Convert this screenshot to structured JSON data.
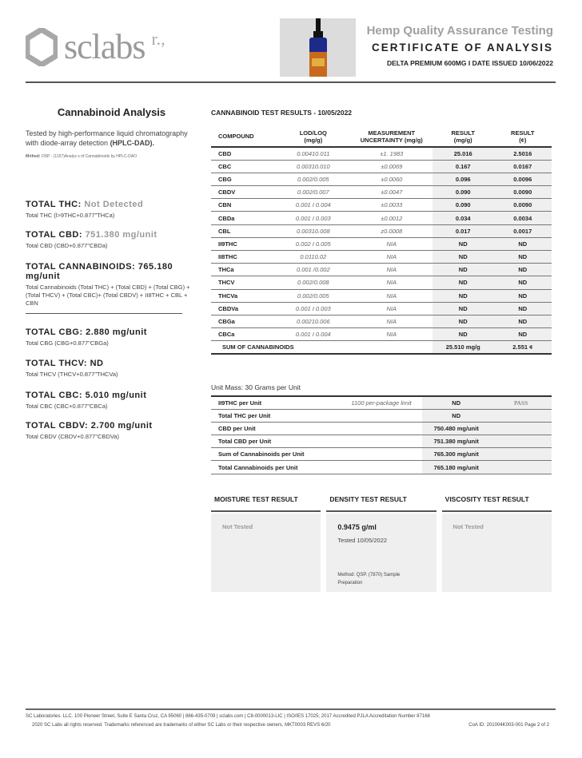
{
  "header": {
    "logo_text": "sclabs",
    "logo_sup": "r.,",
    "title1": "Hemp Quality Assurance Testing",
    "title2": "CERTIFICATE OF ANALYSIS",
    "subtitle": "DELTA PREMIUM 600MG  I DATE ISSUED 10/06/2022"
  },
  "left": {
    "title": "Cannabinoid Analysis",
    "desc_1": "Tested by high-performance liquid chromatography with diode-array detection ",
    "desc_2": "(HPLC-DAD).",
    "method_label": "M•thod:",
    "method": "OSP - (1157)Analys s of Cannablnoids by HPLC-DAO",
    "totals": [
      {
        "label": "TOTAL THC:",
        "value": "Not Detected",
        "formula": "Total THC (l>9THC+0.877\"THCa)"
      },
      {
        "label": "TOTAL CBD:",
        "value": "751.380 mg/unit",
        "formula": "Total CBD (CBD+0.877\"CBDa)"
      },
      {
        "label": "TOTAL CANNABINOIDS:",
        "value": "765.180 mg/unit",
        "formula": "Total Cannabinoids (Total THC) + (Total CBD) + (Total CBG) + (Total THCV) + (Total CBC)+ (Total CBDV) + II8THC + CBL + CBN"
      },
      {
        "label": "TOTAL CBG:",
        "value": "2.880 mg/unit",
        "formula": "Total CBG (CBG+0.877\"CBGa)"
      },
      {
        "label": "TOTAL THCV:",
        "value": "ND",
        "formula": "Total THCV (THCV+0.877\"THCVa)"
      },
      {
        "label": "TOTAL CBC:",
        "value": "5.010 mg/unit",
        "formula": "Total CBC (CBC+0.877\"CBCa)"
      },
      {
        "label": "TOTAL CBDV:",
        "value": "2.700 mg/unit",
        "formula": "Total CBDV (CBDV+0.877\"CBDVa)"
      }
    ]
  },
  "results": {
    "title": "CANNABINOID TEST RESULTS - 10/05/2022",
    "headers": [
      "COMPOUND",
      "LOD/LOQ\n(mg/g)",
      "MEASUREMENT\nUNCERTAINTY (mg/g)",
      "RESULT\n(mg/g)",
      "RESULT\n(¢)"
    ],
    "rows": [
      [
        "CBD",
        "0.00410.011",
        "±1. 1983",
        "25.016",
        "2.5016"
      ],
      [
        "CBC",
        "0.00310.010",
        "±0.0069",
        "0.167",
        "0.0167"
      ],
      [
        "CBG",
        "0.002/0.005",
        "±0.0060",
        "0.096",
        "0.0096"
      ],
      [
        "CBDV",
        "0.002/0.007",
        "±0.0047",
        "0.090",
        "0.0090"
      ],
      [
        "CBN",
        "0.001 I 0.004",
        "±0.0033",
        "0.090",
        "0.0090"
      ],
      [
        "CBDa",
        "0.001 I 0.003",
        "±0.0012",
        "0.034",
        "0.0034"
      ],
      [
        "CBL",
        "0.00310.008",
        "z0.0008",
        "0.017",
        "0.0017"
      ],
      [
        "II9THC",
        "0.002 I 0.005",
        "NIA",
        "ND",
        "ND"
      ],
      [
        "II8THC",
        "0.0110.02",
        "NIA",
        "ND",
        "ND"
      ],
      [
        "THCa",
        "0.001 /0.002",
        "NIA",
        "ND",
        "ND"
      ],
      [
        "THCV",
        "0.002/0.008",
        "NIA",
        "ND",
        "ND"
      ],
      [
        "THCVa",
        "0.002/0.005",
        "NIA",
        "ND",
        "ND"
      ],
      [
        "CBDVa",
        "0.001 I 0.003",
        "NIA",
        "ND",
        "ND"
      ],
      [
        "CBGa",
        "0.00210.006",
        "NIA",
        "ND",
        "ND"
      ],
      [
        "CBCa",
        "0.001 I 0.004",
        "NIA",
        "ND",
        "ND"
      ]
    ],
    "sum": [
      "SUM OF CANNABINOIDS",
      "25.510 mg/g",
      "2.551 ¢"
    ]
  },
  "unit": {
    "mass": "Unit Mass: 30 Grams per Unit",
    "rows": [
      [
        "II9THC per Unit",
        "1100 per-package limit",
        "ND",
        "PASS"
      ],
      [
        "Total THC per Unit",
        "",
        "ND",
        ""
      ],
      [
        "CBD per Unit",
        "",
        "750.480 mg/unit",
        ""
      ],
      [
        "Total CBD per Unit",
        "",
        "751.380 mg/unit",
        ""
      ],
      [
        "Sum of Cannabinoids per Unit",
        "",
        "765.300 mg/unit",
        ""
      ],
      [
        "Total Cannabinoids per Unit",
        "",
        "765.180 mg/unit",
        ""
      ]
    ]
  },
  "tests": {
    "moisture": {
      "title": "MOISTURE TEST RESULT",
      "value": "Not Tested"
    },
    "density": {
      "title": "DENSITY TEST RESULT",
      "value": "0.9475 g/ml",
      "tested": "Tested  10/05/2022",
      "method": "Method: QSP. (7870) Sample",
      "method2": "Preparation"
    },
    "viscosity": {
      "title": "VISCOSITY TEST RESULT",
      "value": "Not Tested"
    }
  },
  "footer": {
    "line1": "SC Laboratories. LLC. 100 Pioneer Street, Suite E Santa Cruz, CA 95060 | 866-435-0709 | sclabs.com | C8-0000013-LIC | ISO/IES 17025; 2017 Accredited PJLA Accreditation Number 87168",
    "line2": "2020 SC Labs all rights reserved. Trademarks referenced are trademarks of either SC Labs or their respective owners. MKT0003 REVS 6/20",
    "coa": "CoA ID: 201004K003-001  Page 2 of 2"
  }
}
